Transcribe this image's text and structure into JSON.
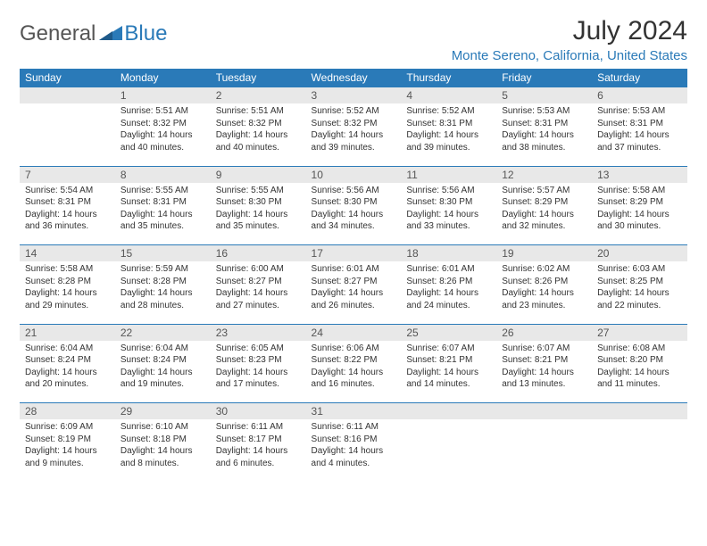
{
  "brand": {
    "general": "General",
    "blue": "Blue"
  },
  "header": {
    "title": "July 2024",
    "subtitle": "Monte Sereno, California, United States"
  },
  "colors": {
    "accent": "#2a7ab8",
    "header_bg": "#2a7ab8",
    "header_text": "#ffffff",
    "daynum_bg": "#e8e8e8",
    "text": "#333333"
  },
  "columns": [
    "Sunday",
    "Monday",
    "Tuesday",
    "Wednesday",
    "Thursday",
    "Friday",
    "Saturday"
  ],
  "weeks": [
    [
      null,
      {
        "n": "1",
        "sr": "Sunrise: 5:51 AM",
        "ss": "Sunset: 8:32 PM",
        "dl1": "Daylight: 14 hours",
        "dl2": "and 40 minutes."
      },
      {
        "n": "2",
        "sr": "Sunrise: 5:51 AM",
        "ss": "Sunset: 8:32 PM",
        "dl1": "Daylight: 14 hours",
        "dl2": "and 40 minutes."
      },
      {
        "n": "3",
        "sr": "Sunrise: 5:52 AM",
        "ss": "Sunset: 8:32 PM",
        "dl1": "Daylight: 14 hours",
        "dl2": "and 39 minutes."
      },
      {
        "n": "4",
        "sr": "Sunrise: 5:52 AM",
        "ss": "Sunset: 8:31 PM",
        "dl1": "Daylight: 14 hours",
        "dl2": "and 39 minutes."
      },
      {
        "n": "5",
        "sr": "Sunrise: 5:53 AM",
        "ss": "Sunset: 8:31 PM",
        "dl1": "Daylight: 14 hours",
        "dl2": "and 38 minutes."
      },
      {
        "n": "6",
        "sr": "Sunrise: 5:53 AM",
        "ss": "Sunset: 8:31 PM",
        "dl1": "Daylight: 14 hours",
        "dl2": "and 37 minutes."
      }
    ],
    [
      {
        "n": "7",
        "sr": "Sunrise: 5:54 AM",
        "ss": "Sunset: 8:31 PM",
        "dl1": "Daylight: 14 hours",
        "dl2": "and 36 minutes."
      },
      {
        "n": "8",
        "sr": "Sunrise: 5:55 AM",
        "ss": "Sunset: 8:31 PM",
        "dl1": "Daylight: 14 hours",
        "dl2": "and 35 minutes."
      },
      {
        "n": "9",
        "sr": "Sunrise: 5:55 AM",
        "ss": "Sunset: 8:30 PM",
        "dl1": "Daylight: 14 hours",
        "dl2": "and 35 minutes."
      },
      {
        "n": "10",
        "sr": "Sunrise: 5:56 AM",
        "ss": "Sunset: 8:30 PM",
        "dl1": "Daylight: 14 hours",
        "dl2": "and 34 minutes."
      },
      {
        "n": "11",
        "sr": "Sunrise: 5:56 AM",
        "ss": "Sunset: 8:30 PM",
        "dl1": "Daylight: 14 hours",
        "dl2": "and 33 minutes."
      },
      {
        "n": "12",
        "sr": "Sunrise: 5:57 AM",
        "ss": "Sunset: 8:29 PM",
        "dl1": "Daylight: 14 hours",
        "dl2": "and 32 minutes."
      },
      {
        "n": "13",
        "sr": "Sunrise: 5:58 AM",
        "ss": "Sunset: 8:29 PM",
        "dl1": "Daylight: 14 hours",
        "dl2": "and 30 minutes."
      }
    ],
    [
      {
        "n": "14",
        "sr": "Sunrise: 5:58 AM",
        "ss": "Sunset: 8:28 PM",
        "dl1": "Daylight: 14 hours",
        "dl2": "and 29 minutes."
      },
      {
        "n": "15",
        "sr": "Sunrise: 5:59 AM",
        "ss": "Sunset: 8:28 PM",
        "dl1": "Daylight: 14 hours",
        "dl2": "and 28 minutes."
      },
      {
        "n": "16",
        "sr": "Sunrise: 6:00 AM",
        "ss": "Sunset: 8:27 PM",
        "dl1": "Daylight: 14 hours",
        "dl2": "and 27 minutes."
      },
      {
        "n": "17",
        "sr": "Sunrise: 6:01 AM",
        "ss": "Sunset: 8:27 PM",
        "dl1": "Daylight: 14 hours",
        "dl2": "and 26 minutes."
      },
      {
        "n": "18",
        "sr": "Sunrise: 6:01 AM",
        "ss": "Sunset: 8:26 PM",
        "dl1": "Daylight: 14 hours",
        "dl2": "and 24 minutes."
      },
      {
        "n": "19",
        "sr": "Sunrise: 6:02 AM",
        "ss": "Sunset: 8:26 PM",
        "dl1": "Daylight: 14 hours",
        "dl2": "and 23 minutes."
      },
      {
        "n": "20",
        "sr": "Sunrise: 6:03 AM",
        "ss": "Sunset: 8:25 PM",
        "dl1": "Daylight: 14 hours",
        "dl2": "and 22 minutes."
      }
    ],
    [
      {
        "n": "21",
        "sr": "Sunrise: 6:04 AM",
        "ss": "Sunset: 8:24 PM",
        "dl1": "Daylight: 14 hours",
        "dl2": "and 20 minutes."
      },
      {
        "n": "22",
        "sr": "Sunrise: 6:04 AM",
        "ss": "Sunset: 8:24 PM",
        "dl1": "Daylight: 14 hours",
        "dl2": "and 19 minutes."
      },
      {
        "n": "23",
        "sr": "Sunrise: 6:05 AM",
        "ss": "Sunset: 8:23 PM",
        "dl1": "Daylight: 14 hours",
        "dl2": "and 17 minutes."
      },
      {
        "n": "24",
        "sr": "Sunrise: 6:06 AM",
        "ss": "Sunset: 8:22 PM",
        "dl1": "Daylight: 14 hours",
        "dl2": "and 16 minutes."
      },
      {
        "n": "25",
        "sr": "Sunrise: 6:07 AM",
        "ss": "Sunset: 8:21 PM",
        "dl1": "Daylight: 14 hours",
        "dl2": "and 14 minutes."
      },
      {
        "n": "26",
        "sr": "Sunrise: 6:07 AM",
        "ss": "Sunset: 8:21 PM",
        "dl1": "Daylight: 14 hours",
        "dl2": "and 13 minutes."
      },
      {
        "n": "27",
        "sr": "Sunrise: 6:08 AM",
        "ss": "Sunset: 8:20 PM",
        "dl1": "Daylight: 14 hours",
        "dl2": "and 11 minutes."
      }
    ],
    [
      {
        "n": "28",
        "sr": "Sunrise: 6:09 AM",
        "ss": "Sunset: 8:19 PM",
        "dl1": "Daylight: 14 hours",
        "dl2": "and 9 minutes."
      },
      {
        "n": "29",
        "sr": "Sunrise: 6:10 AM",
        "ss": "Sunset: 8:18 PM",
        "dl1": "Daylight: 14 hours",
        "dl2": "and 8 minutes."
      },
      {
        "n": "30",
        "sr": "Sunrise: 6:11 AM",
        "ss": "Sunset: 8:17 PM",
        "dl1": "Daylight: 14 hours",
        "dl2": "and 6 minutes."
      },
      {
        "n": "31",
        "sr": "Sunrise: 6:11 AM",
        "ss": "Sunset: 8:16 PM",
        "dl1": "Daylight: 14 hours",
        "dl2": "and 4 minutes."
      },
      null,
      null,
      null
    ]
  ]
}
